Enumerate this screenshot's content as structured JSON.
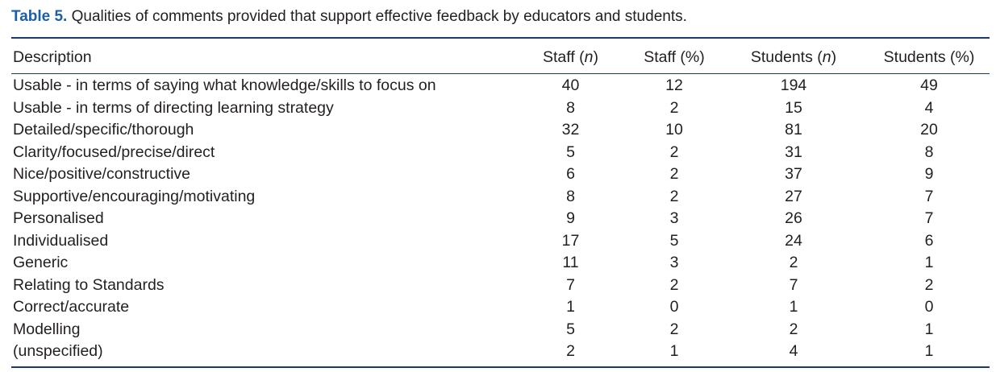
{
  "caption": {
    "label": "Table 5.",
    "text": " Qualities of comments provided that support effective feedback by educators and students."
  },
  "table": {
    "headers": {
      "description": "Description",
      "staff_n_prefix": "Staff (",
      "staff_n_italic": "n",
      "staff_n_suffix": ")",
      "staff_pct": "Staff (%)",
      "students_n_prefix": "Students (",
      "students_n_italic": "n",
      "students_n_suffix": ")",
      "students_pct": "Students (%)"
    },
    "rows": [
      {
        "description": "Usable - in terms of saying what knowledge/skills to focus on",
        "staff_n": "40",
        "staff_pct": "12",
        "students_n": "194",
        "students_pct": "49"
      },
      {
        "description": "Usable - in terms of directing learning strategy",
        "staff_n": "8",
        "staff_pct": "2",
        "students_n": "15",
        "students_pct": "4"
      },
      {
        "description": "Detailed/specific/thorough",
        "staff_n": "32",
        "staff_pct": "10",
        "students_n": "81",
        "students_pct": "20"
      },
      {
        "description": "Clarity/focused/precise/direct",
        "staff_n": "5",
        "staff_pct": "2",
        "students_n": "31",
        "students_pct": "8"
      },
      {
        "description": "Nice/positive/constructive",
        "staff_n": "6",
        "staff_pct": "2",
        "students_n": "37",
        "students_pct": "9"
      },
      {
        "description": "Supportive/encouraging/motivating",
        "staff_n": "8",
        "staff_pct": "2",
        "students_n": "27",
        "students_pct": "7"
      },
      {
        "description": "Personalised",
        "staff_n": "9",
        "staff_pct": "3",
        "students_n": "26",
        "students_pct": "7"
      },
      {
        "description": "Individualised",
        "staff_n": "17",
        "staff_pct": "5",
        "students_n": "24",
        "students_pct": "6"
      },
      {
        "description": "Generic",
        "staff_n": "11",
        "staff_pct": "3",
        "students_n": "2",
        "students_pct": "1"
      },
      {
        "description": "Relating to Standards",
        "staff_n": "7",
        "staff_pct": "2",
        "students_n": "7",
        "students_pct": "2"
      },
      {
        "description": "Correct/accurate",
        "staff_n": "1",
        "staff_pct": "0",
        "students_n": "1",
        "students_pct": "0"
      },
      {
        "description": "Modelling",
        "staff_n": "5",
        "staff_pct": "2",
        "students_n": "2",
        "students_pct": "1"
      },
      {
        "description": "(unspecified)",
        "staff_n": "2",
        "staff_pct": "1",
        "students_n": "4",
        "students_pct": "1"
      }
    ]
  },
  "colors": {
    "caption_label": "#1d5fa6",
    "rules": "#1b3a6b",
    "text": "#231f20"
  }
}
